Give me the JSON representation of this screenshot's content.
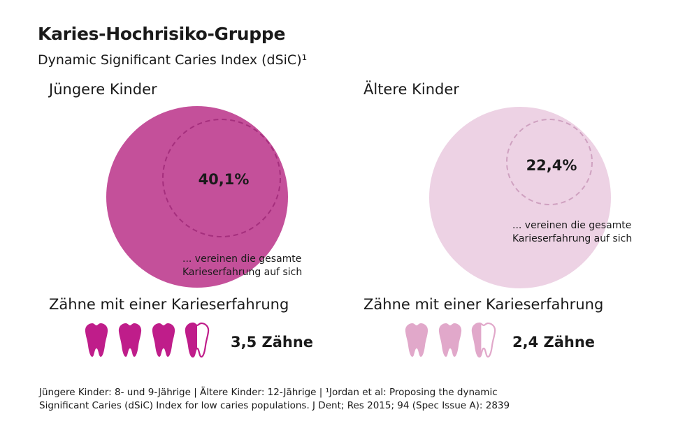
{
  "title": "Karies-Hochrisiko-Gruppe",
  "subtitle": "Dynamic Significant Caries Index (dSiC)¹",
  "colors": {
    "young": "#c4509a",
    "young_inner": "#a52f7d",
    "young_teeth": "#bf1d8a",
    "old": "#edd2e4",
    "old_inner": "#cfa1c0",
    "old_teeth": "#e1a8ca"
  },
  "icons": [
    "tooth-icon"
  ],
  "chart_data": {
    "type": "bubble",
    "groups": [
      {
        "label": "Jüngere Kinder",
        "share_percent": 40.1,
        "share_text": "40,1%",
        "note_line1": "... vereinen die gesamte",
        "note_line2": "Karieserfahrung auf sich",
        "teeth_label": "Zähne mit einer Karieserfahrung",
        "teeth": 3.5,
        "teeth_text": "3,5 Zähne"
      },
      {
        "label": "Ältere Kinder",
        "share_percent": 22.4,
        "share_text": "22,4%",
        "note_line1": "... vereinen die gesamte",
        "note_line2": "Karieserfahrung auf sich",
        "teeth_label": "Zähne mit einer Karieserfahrung",
        "teeth": 2.4,
        "teeth_text": "2,4 Zähne"
      }
    ]
  },
  "footnote": {
    "line1": "Jüngere Kinder: 8- und 9-Jährige | Ältere Kinder: 12-Jährige | ¹Jordan et al: Proposing the dynamic",
    "line2": "Significant Caries (dSiC) Index for low caries populations. J Dent; Res 2015; 94 (Spec Issue A): 2839"
  }
}
